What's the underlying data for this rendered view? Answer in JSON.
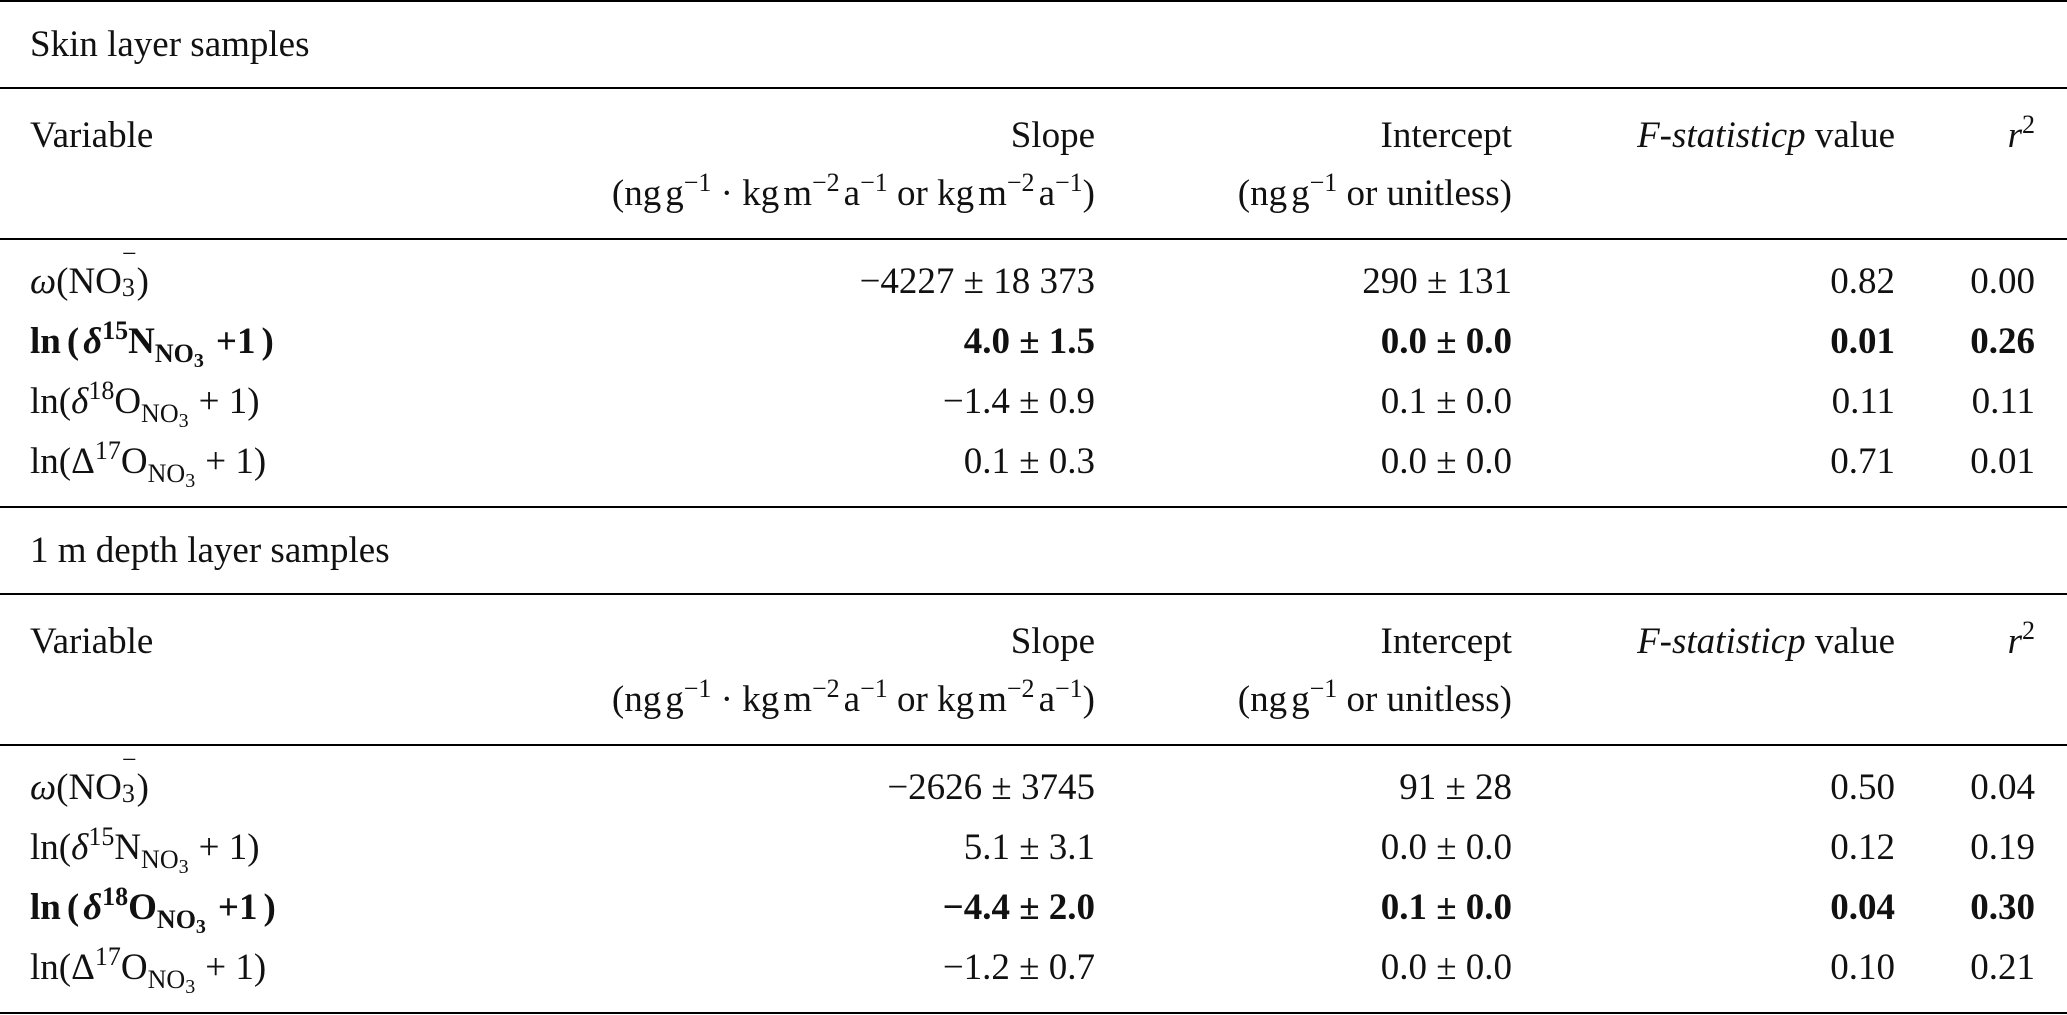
{
  "sections": [
    {
      "title": "Skin layer samples",
      "header": {
        "variable": "Variable",
        "slope": "Slope",
        "slope_units": "(ng g−1 · kg m−2 a−1 or kg m−2 a−1)",
        "intercept": "Intercept",
        "intercept_units": "(ng g−1 or unitless)",
        "fstat": "F-statistic p value",
        "r2": "r2"
      },
      "rows": [
        {
          "variable": "ω(NO3−)",
          "slope": "−4227 ± 18 373",
          "intercept": "290 ± 131",
          "p": "0.82",
          "r2": "0.00",
          "bold": false
        },
        {
          "variable": "ln(δ15NNO3 + 1)",
          "slope": "4.0 ± 1.5",
          "intercept": "0.0 ± 0.0",
          "p": "0.01",
          "r2": "0.26",
          "bold": true
        },
        {
          "variable": "ln(δ18ONO3 + 1)",
          "slope": "−1.4 ± 0.9",
          "intercept": "0.1 ± 0.0",
          "p": "0.11",
          "r2": "0.11",
          "bold": false
        },
        {
          "variable": "ln(Δ17ONO3 + 1)",
          "slope": "0.1 ± 0.3",
          "intercept": "0.0 ± 0.0",
          "p": "0.71",
          "r2": "0.01",
          "bold": false
        }
      ]
    },
    {
      "title": "1 m depth layer samples",
      "header": {
        "variable": "Variable",
        "slope": "Slope",
        "slope_units": "(ng g−1 · kg m−2 a−1 or kg m−2 a−1)",
        "intercept": "Intercept",
        "intercept_units": "(ng g−1 or unitless)",
        "fstat": "F-statistic p value",
        "r2": "r2"
      },
      "rows": [
        {
          "variable": "ω(NO3−)",
          "slope": "−2626 ± 3745",
          "intercept": "91 ± 28",
          "p": "0.50",
          "r2": "0.04",
          "bold": false
        },
        {
          "variable": "ln(δ15NNO3 + 1)",
          "slope": "5.1 ± 3.1",
          "intercept": "0.0 ± 0.0",
          "p": "0.12",
          "r2": "0.19",
          "bold": false
        },
        {
          "variable": "ln(δ18ONO3 + 1)",
          "slope": "−4.4 ± 2.0",
          "intercept": "0.1 ± 0.0",
          "p": "0.04",
          "r2": "0.30",
          "bold": true
        },
        {
          "variable": "ln(Δ17ONO3 + 1)",
          "slope": "−1.2 ± 0.7",
          "intercept": "0.0 ± 0.0",
          "p": "0.10",
          "r2": "0.21",
          "bold": false
        }
      ]
    }
  ]
}
